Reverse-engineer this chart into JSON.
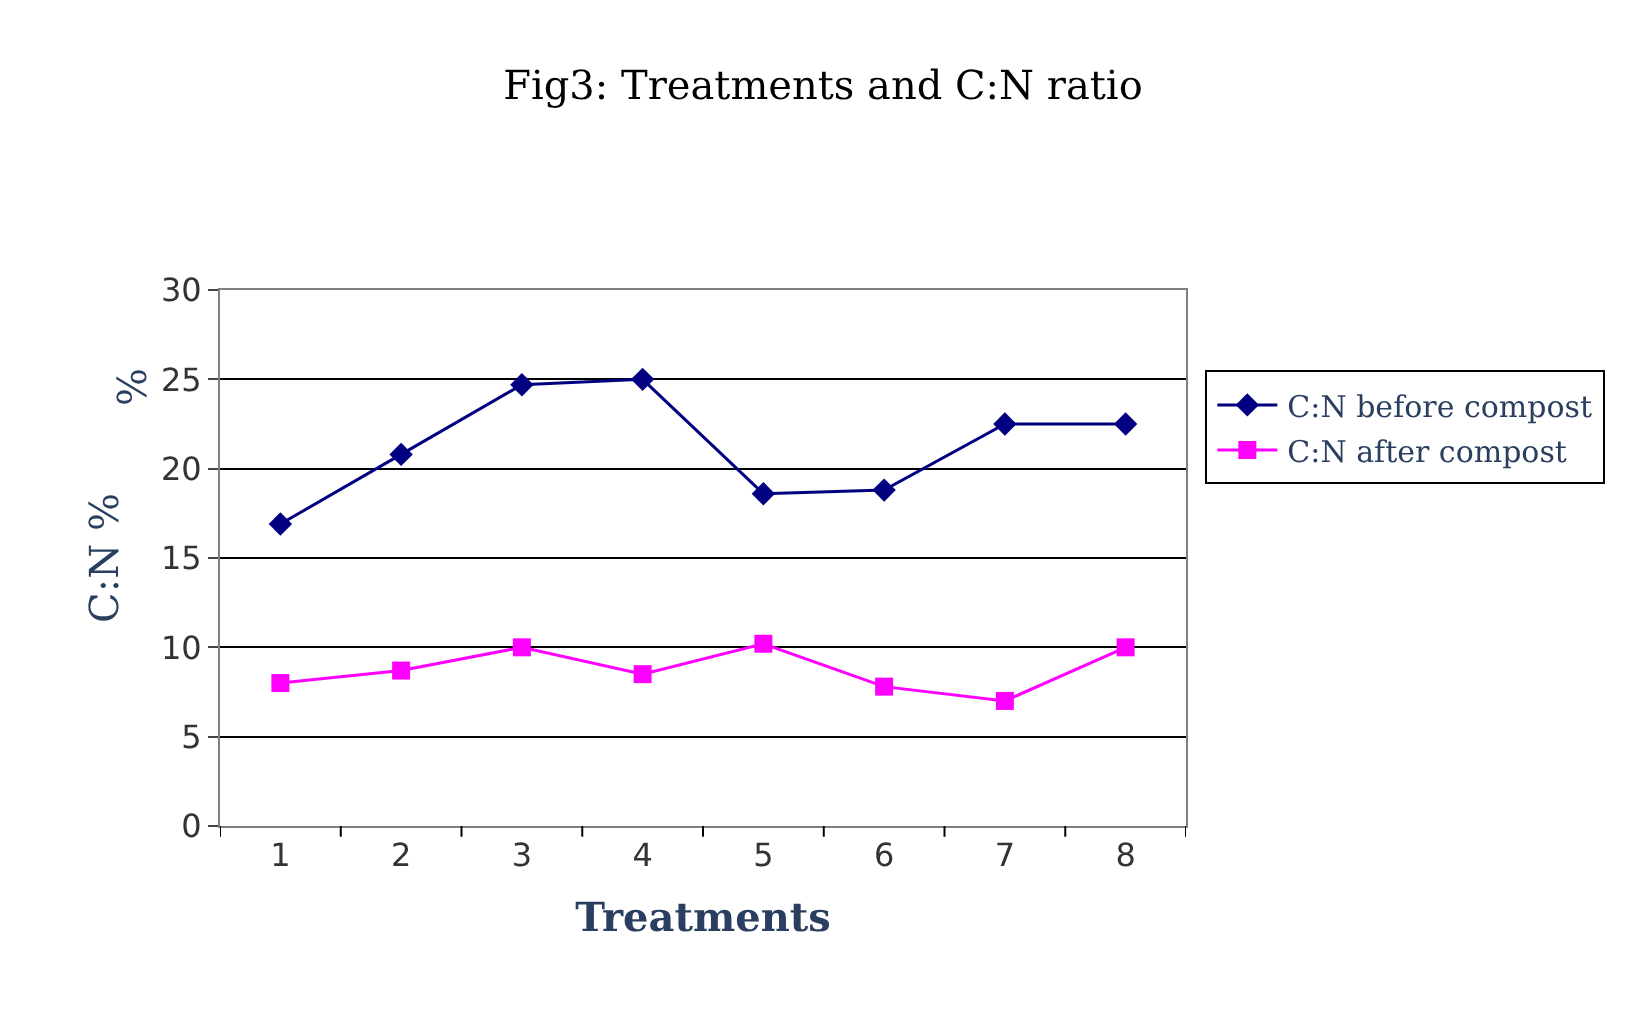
{
  "chart_data": {
    "type": "line",
    "title": "Fig3: Treatments and C:N ratio",
    "xlabel": "Treatments",
    "ylabel": "C:N %",
    "annotations": [
      "%"
    ],
    "categories": [
      "1",
      "2",
      "3",
      "4",
      "5",
      "6",
      "7",
      "8"
    ],
    "series": [
      {
        "name": "C:N before compost",
        "color": "#000080",
        "marker": "diamond",
        "values": [
          16.9,
          20.8,
          24.7,
          25.0,
          18.6,
          18.8,
          22.5,
          22.5
        ]
      },
      {
        "name": "C:N after compost",
        "color": "#ff00ff",
        "marker": "square",
        "values": [
          8.0,
          8.7,
          10.0,
          8.5,
          10.2,
          7.8,
          7.0,
          10.0
        ]
      }
    ],
    "ylim": [
      0,
      30
    ],
    "yticks": [
      0,
      5,
      10,
      15,
      20,
      25,
      30
    ],
    "grid": "y",
    "legend": "right",
    "line_style": "solid"
  }
}
